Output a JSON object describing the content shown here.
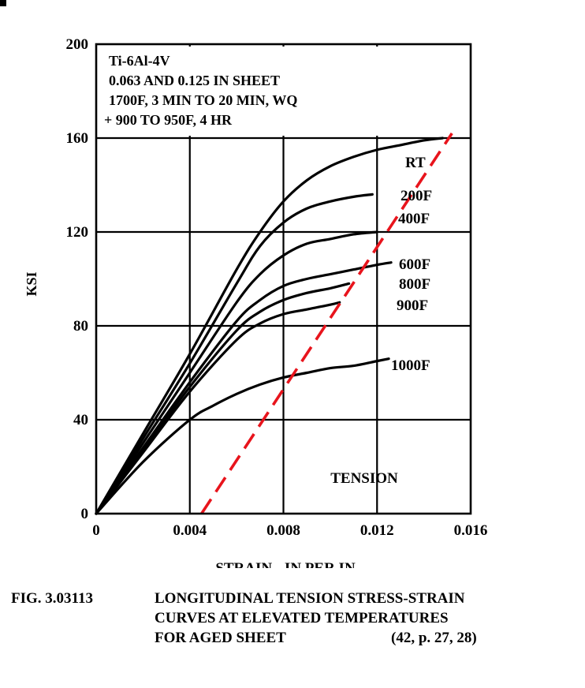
{
  "chart_data": {
    "type": "line",
    "annotation_box": [
      "Ti-6Al-4V",
      "0.063 AND 0.125 IN SHEET",
      "1700F, 3 MIN TO 20 MIN, WQ",
      "+ 900 TO 950F, 4 HR"
    ],
    "xlabel": "STRAIN - IN PER IN",
    "ylabel": "KSI",
    "xlim": [
      0,
      0.016
    ],
    "ylim": [
      0,
      200
    ],
    "x_ticks": [
      "0",
      "0.004",
      "0.008",
      "0.012",
      "0.016"
    ],
    "y_ticks": [
      "0",
      "40",
      "80",
      "120",
      "160",
      "200"
    ],
    "grid": true,
    "mode_label": "TENSION",
    "series": [
      {
        "name": "RT",
        "x": [
          0,
          0.002,
          0.004,
          0.006,
          0.007,
          0.008,
          0.009,
          0.01,
          0.011,
          0.012,
          0.013,
          0.014,
          0.0148
        ],
        "y": [
          0,
          34,
          68,
          104,
          120,
          133,
          142,
          148,
          152,
          155,
          157,
          159,
          160
        ]
      },
      {
        "name": "200F",
        "x": [
          0,
          0.002,
          0.004,
          0.006,
          0.007,
          0.008,
          0.009,
          0.01,
          0.011,
          0.0118
        ],
        "y": [
          0,
          32,
          64,
          98,
          114,
          124,
          130,
          133,
          135,
          136
        ]
      },
      {
        "name": "400F",
        "x": [
          0,
          0.002,
          0.004,
          0.006,
          0.007,
          0.008,
          0.009,
          0.01,
          0.011,
          0.012
        ],
        "y": [
          0,
          30,
          60,
          90,
          102,
          110,
          115,
          117,
          119,
          120
        ]
      },
      {
        "name": "600F",
        "x": [
          0,
          0.002,
          0.004,
          0.006,
          0.007,
          0.008,
          0.009,
          0.01,
          0.011,
          0.012,
          0.0126
        ],
        "y": [
          0,
          28,
          56,
          82,
          91,
          97,
          100,
          102,
          104,
          106,
          107
        ]
      },
      {
        "name": "800F",
        "x": [
          0,
          0.002,
          0.004,
          0.006,
          0.007,
          0.008,
          0.009,
          0.01,
          0.0108
        ],
        "y": [
          0,
          27,
          54,
          78,
          86,
          91,
          94,
          96,
          98
        ]
      },
      {
        "name": "900F",
        "x": [
          0,
          0.002,
          0.004,
          0.006,
          0.007,
          0.008,
          0.009,
          0.01,
          0.0104
        ],
        "y": [
          0,
          26,
          52,
          74,
          81,
          85,
          87,
          89,
          90
        ]
      },
      {
        "name": "1000F",
        "x": [
          0,
          0.002,
          0.004,
          0.005,
          0.006,
          0.007,
          0.008,
          0.009,
          0.01,
          0.011,
          0.012,
          0.0125
        ],
        "y": [
          0,
          22,
          40,
          46,
          51,
          55,
          58,
          60,
          62,
          63,
          65,
          66
        ]
      }
    ],
    "offset_line": {
      "x": [
        0.0045,
        0.0152
      ],
      "y": [
        0,
        162
      ],
      "color": "#e8141c",
      "style": "dashed"
    },
    "curve_color": "#000000"
  },
  "caption": {
    "figure_id": "FIG. 3.03113",
    "lines": [
      "LONGITUDINAL TENSION STRESS-STRAIN",
      "CURVES AT ELEVATED TEMPERATURES",
      "FOR AGED SHEET"
    ],
    "reference": "(42,  p. 27,  28)"
  }
}
